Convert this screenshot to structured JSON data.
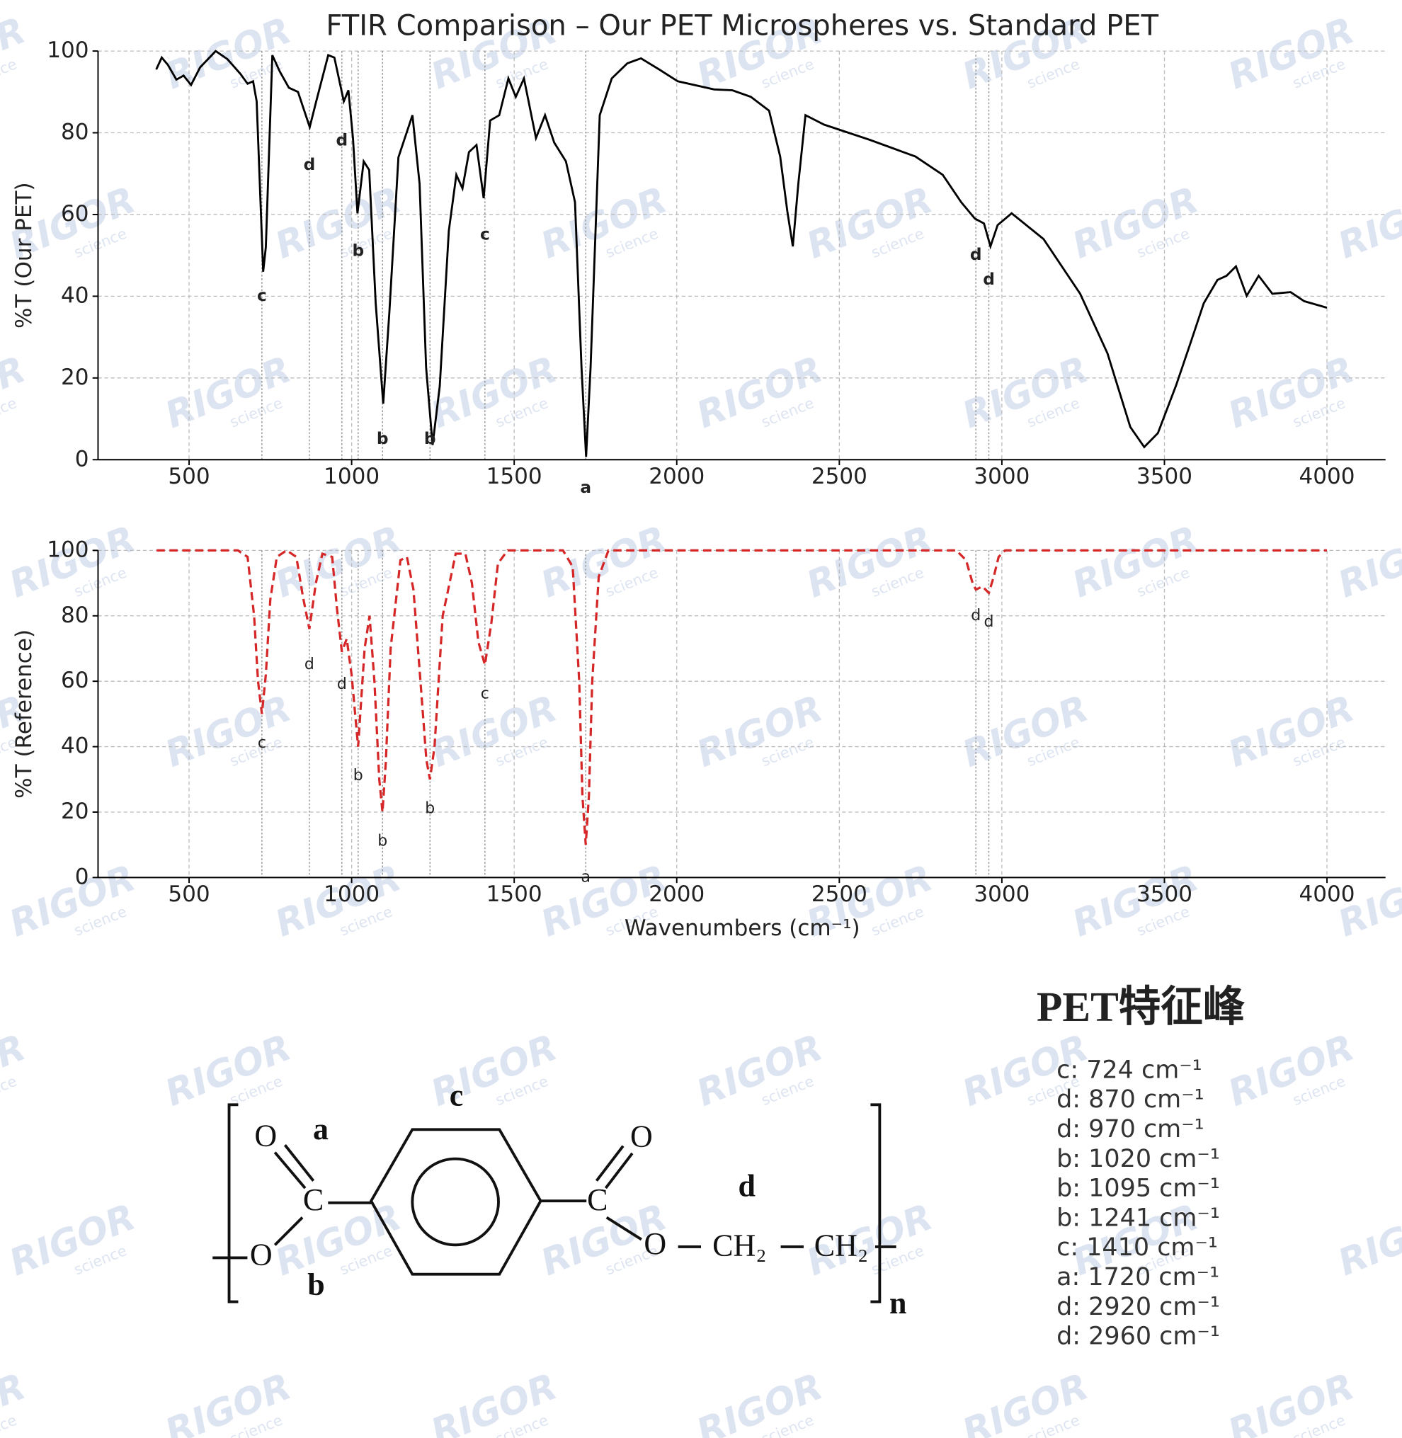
{
  "chart_data": [
    {
      "type": "line",
      "title": "FTIR Comparison – Our PET Microspheres vs. Standard PET",
      "ylabel": "%T (Our PET)",
      "x": [
        399,
        416,
        435,
        461,
        483,
        506,
        534,
        582,
        618,
        658,
        680,
        697,
        708,
        728,
        736,
        756,
        779,
        807,
        835,
        871,
        891,
        928,
        947,
        976,
        990,
        1004,
        1018,
        1037,
        1054,
        1074,
        1097,
        1116,
        1144,
        1187,
        1209,
        1229,
        1249,
        1271,
        1299,
        1322,
        1341,
        1361,
        1384,
        1406,
        1426,
        1454,
        1482,
        1505,
        1530,
        1567,
        1595,
        1623,
        1659,
        1687,
        1707,
        1721,
        1735,
        1763,
        1800,
        1848,
        1890,
        1946,
        2003,
        2115,
        2171,
        2228,
        2284,
        2318,
        2340,
        2357,
        2374,
        2396,
        2453,
        2593,
        2734,
        2818,
        2875,
        2917,
        2945,
        2965,
        2987,
        3030,
        3128,
        3241,
        3325,
        3395,
        3438,
        3480,
        3536,
        3579,
        3621,
        3663,
        3691,
        3720,
        3753,
        3790,
        3832,
        3888,
        3930,
        4000
      ],
      "series": [
        {
          "color": "#000000",
          "linestyle": "solid",
          "values": [
            95.5,
            98.4,
            96.6,
            93,
            94,
            91.7,
            96,
            100,
            98,
            94.4,
            92,
            92.6,
            87.7,
            46,
            52,
            99,
            95,
            91,
            90,
            81.4,
            87.7,
            99,
            98.4,
            87.7,
            90.4,
            78.7,
            60.3,
            73,
            70.9,
            38.3,
            13.7,
            36,
            74,
            84.3,
            67.5,
            22.6,
            3.6,
            18,
            56,
            69.7,
            66.4,
            75.3,
            77,
            64,
            83,
            84.3,
            93.3,
            88.8,
            93.3,
            78.7,
            84.3,
            77.6,
            73,
            63,
            22.6,
            0.7,
            22.6,
            84.3,
            93.3,
            97,
            98.2,
            95.5,
            92.6,
            90.6,
            90.4,
            88.8,
            85.4,
            74.2,
            60.8,
            52.2,
            67.5,
            84.3,
            82,
            78.3,
            74.2,
            69.7,
            63,
            59,
            57.8,
            52.2,
            57.4,
            60.3,
            54,
            40.6,
            26,
            8,
            3.1,
            6.5,
            18.2,
            28.3,
            38.3,
            44,
            45,
            47.3,
            40.1,
            45,
            40.6,
            41,
            38.8,
            37.2
          ]
        }
      ],
      "vlines": [
        724,
        870,
        970,
        1020,
        1095,
        1241,
        1410,
        1720,
        2920,
        2960
      ],
      "annotations": [
        {
          "text": "c",
          "x": 724,
          "y": 40
        },
        {
          "text": "d",
          "x": 870,
          "y": 72
        },
        {
          "text": "d",
          "x": 970,
          "y": 78
        },
        {
          "text": "b",
          "x": 1020,
          "y": 51
        },
        {
          "text": "b",
          "x": 1095,
          "y": 5
        },
        {
          "text": "b",
          "x": 1241,
          "y": 5
        },
        {
          "text": "c",
          "x": 1410,
          "y": 55
        },
        {
          "text": "a",
          "x": 1720,
          "y": -7
        },
        {
          "text": "d",
          "x": 2920,
          "y": 50
        },
        {
          "text": "d",
          "x": 2960,
          "y": 44
        }
      ],
      "xlim": [
        220,
        4180
      ],
      "ylim": [
        0,
        100
      ],
      "xticks": [
        500,
        1000,
        1500,
        2000,
        2500,
        3000,
        3500,
        4000
      ],
      "yticks": [
        0,
        20,
        40,
        60,
        80,
        100
      ],
      "grid": true
    },
    {
      "type": "line",
      "ylabel": "%T (Reference)",
      "xlabel": "Wavenumbers (cm⁻¹)",
      "x": [
        400,
        650,
        680,
        700,
        712,
        724,
        736,
        750,
        770,
        800,
        830,
        850,
        870,
        890,
        910,
        940,
        955,
        970,
        985,
        1000,
        1020,
        1040,
        1055,
        1070,
        1085,
        1095,
        1105,
        1120,
        1150,
        1170,
        1190,
        1210,
        1230,
        1241,
        1255,
        1280,
        1320,
        1350,
        1370,
        1390,
        1410,
        1430,
        1450,
        1480,
        1520,
        1650,
        1680,
        1700,
        1710,
        1720,
        1730,
        1740,
        1760,
        1790,
        1820,
        2860,
        2890,
        2910,
        2920,
        2940,
        2960,
        2975,
        2990,
        3010,
        4000
      ],
      "series": [
        {
          "color": "#d62728",
          "linestyle": "dashed",
          "values": [
            100,
            100,
            98,
            80,
            60,
            50,
            62,
            85,
            98,
            100,
            98,
            86,
            76,
            90,
            99,
            98,
            82,
            69,
            73,
            62,
            40,
            70,
            80,
            60,
            30,
            20,
            35,
            70,
            97,
            98,
            88,
            62,
            36,
            30,
            40,
            80,
            99,
            99,
            90,
            72,
            65,
            78,
            96,
            100,
            100,
            100,
            95,
            60,
            25,
            10,
            25,
            60,
            92,
            100,
            100,
            100,
            97,
            90,
            88,
            89,
            87,
            92,
            98,
            100,
            100
          ]
        }
      ],
      "vlines": [
        724,
        870,
        970,
        1020,
        1095,
        1241,
        1410,
        1720,
        2920,
        2960
      ],
      "annotations": [
        {
          "text": "c",
          "x": 724,
          "y": 41
        },
        {
          "text": "d",
          "x": 870,
          "y": 65
        },
        {
          "text": "d",
          "x": 970,
          "y": 59
        },
        {
          "text": "b",
          "x": 1020,
          "y": 31
        },
        {
          "text": "b",
          "x": 1095,
          "y": 11
        },
        {
          "text": "b",
          "x": 1241,
          "y": 21
        },
        {
          "text": "c",
          "x": 1410,
          "y": 56
        },
        {
          "text": "a",
          "x": 1720,
          "y": 0
        },
        {
          "text": "d",
          "x": 2920,
          "y": 80
        },
        {
          "text": "d",
          "x": 2960,
          "y": 78
        }
      ],
      "xlim": [
        220,
        4180
      ],
      "ylim": [
        0,
        100
      ],
      "xticks": [
        500,
        1000,
        1500,
        2000,
        2500,
        3000,
        3500,
        4000
      ],
      "yticks": [
        0,
        20,
        40,
        60,
        80,
        100
      ],
      "grid": true
    }
  ],
  "structure": {
    "texts": [
      "O",
      "a",
      "C",
      "O",
      "b",
      "c",
      "O",
      "C",
      "O",
      "d",
      "CH₂",
      "CH₂",
      "n"
    ]
  },
  "peak_list": {
    "title": "PET特征峰",
    "items": [
      "c: 724 cm⁻¹",
      "d: 870 cm⁻¹",
      "d: 970 cm⁻¹",
      "b: 1020 cm⁻¹",
      "b: 1095 cm⁻¹",
      "b: 1241 cm⁻¹",
      "c: 1410 cm⁻¹",
      "a: 1720 cm⁻¹",
      "d: 2920 cm⁻¹",
      "d: 2960 cm⁻¹"
    ]
  },
  "watermark": {
    "text": "RIGOR",
    "subtext": "science"
  }
}
